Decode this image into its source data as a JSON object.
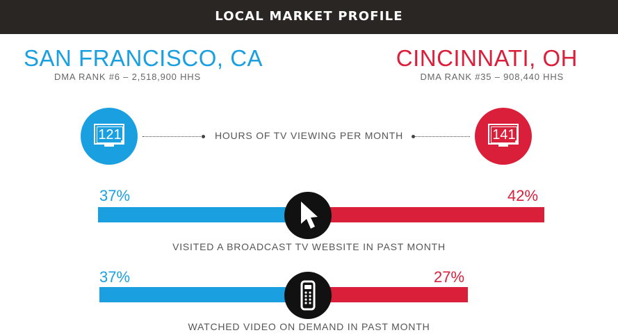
{
  "header": {
    "title": "LOCAL MARKET PROFILE"
  },
  "left_market": {
    "name": "SAN FRANCISCO, CA",
    "dma": "DMA RANK #6 – 2,518,900 HHS",
    "color": "#1aa0e0"
  },
  "right_market": {
    "name": "CINCINNATI, OH",
    "dma": "DMA RANK #35 – 908,440 HHS",
    "color": "#d91f3a"
  },
  "tv_viewing": {
    "label": "HOURS OF TV VIEWING PER MONTH",
    "left_value": "121",
    "right_value": "141",
    "icon": "tv-icon"
  },
  "metrics": [
    {
      "label": "VISITED A BROADCAST TV WEBSITE IN PAST MONTH",
      "left_pct": "37%",
      "right_pct": "42%",
      "left_value": 37,
      "right_value": 42,
      "icon": "cursor-icon"
    },
    {
      "label": "WATCHED VIDEO ON DEMAND IN PAST MONTH",
      "left_pct": "37%",
      "right_pct": "27%",
      "left_value": 37,
      "right_value": 27,
      "icon": "remote-control-icon"
    }
  ]
}
